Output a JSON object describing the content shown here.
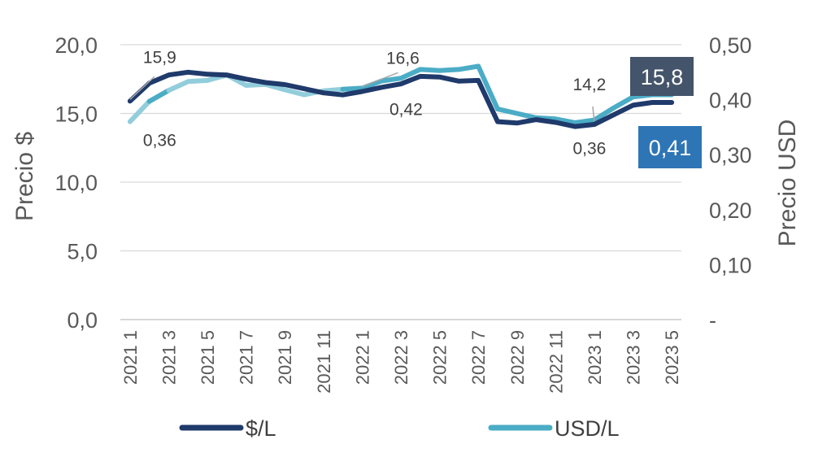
{
  "chart_data": {
    "type": "line",
    "x": [
      "2021 1",
      "2021 2",
      "2021 3",
      "2021 4",
      "2021 5",
      "2021 6",
      "2021 7",
      "2021 8",
      "2021 9",
      "2021 10",
      "2021 11",
      "2021 12",
      "2022 1",
      "2022 2",
      "2022 3",
      "2022 4",
      "2022 5",
      "2022 6",
      "2022 7",
      "2022 8",
      "2022 9",
      "2022 10",
      "2022 11",
      "2022 12",
      "2023 1",
      "2023 2",
      "2023 3",
      "2023 4",
      "2023 5"
    ],
    "x_tick_labels": [
      "2021 1",
      "2021 3",
      "2021 5",
      "2021 7",
      "2021 9",
      "2021 11",
      "2022 1",
      "2022 3",
      "2022 5",
      "2022 7",
      "2022 9",
      "2022 11",
      "2023 1",
      "2023 3",
      "2023 5"
    ],
    "ylabel": "Precio $",
    "y2label": "Precio USD",
    "ylim": [
      0,
      20
    ],
    "y2lim": [
      0,
      0.5
    ],
    "y_ticks": [
      "0,0",
      "5,0",
      "10,0",
      "15,0",
      "20,0"
    ],
    "y2_ticks": [
      "-",
      "0,10",
      "0,20",
      "0,30",
      "0,40",
      "0,50"
    ],
    "grid": "horizontal",
    "legend_position": "bottom",
    "series": [
      {
        "name": "$/L",
        "axis": "left",
        "color": "#1F3A6B",
        "values": [
          15.9,
          17.2,
          17.8,
          18.0,
          17.85,
          17.8,
          17.5,
          17.25,
          17.1,
          16.8,
          16.5,
          16.35,
          16.6,
          16.9,
          17.15,
          17.7,
          17.65,
          17.35,
          17.4,
          14.4,
          14.3,
          14.55,
          14.35,
          14.05,
          14.2,
          14.9,
          15.6,
          15.8,
          15.8
        ]
      },
      {
        "name": "USD/L",
        "axis": "right",
        "color": "#4BACC6",
        "light_color": "#92CDDC",
        "values": [
          0.36,
          0.397,
          0.417,
          0.433,
          0.435,
          0.445,
          0.426,
          0.428,
          0.418,
          0.409,
          0.416,
          0.419,
          0.421,
          0.434,
          0.439,
          0.455,
          0.453,
          0.455,
          0.461,
          0.383,
          0.375,
          0.367,
          0.365,
          0.358,
          0.363,
          0.385,
          0.405,
          0.409,
          0.409
        ]
      }
    ],
    "annotations": [
      {
        "text": "15,9",
        "series": "$/L",
        "index": 0
      },
      {
        "text": "0,36",
        "series": "USD/L",
        "index": 0
      },
      {
        "text": "16,6",
        "series": "$/L",
        "index": 12
      },
      {
        "text": "0,42",
        "series": "USD/L",
        "index": 12
      },
      {
        "text": "14,2",
        "series": "$/L",
        "index": 24
      },
      {
        "text": "0,36",
        "series": "USD/L",
        "index": 24
      }
    ],
    "callouts": [
      {
        "text": "15,8",
        "series": "$/L",
        "bg": "#44546A"
      },
      {
        "text": "0,41",
        "series": "USD/L",
        "bg": "#2E75B6"
      }
    ]
  }
}
